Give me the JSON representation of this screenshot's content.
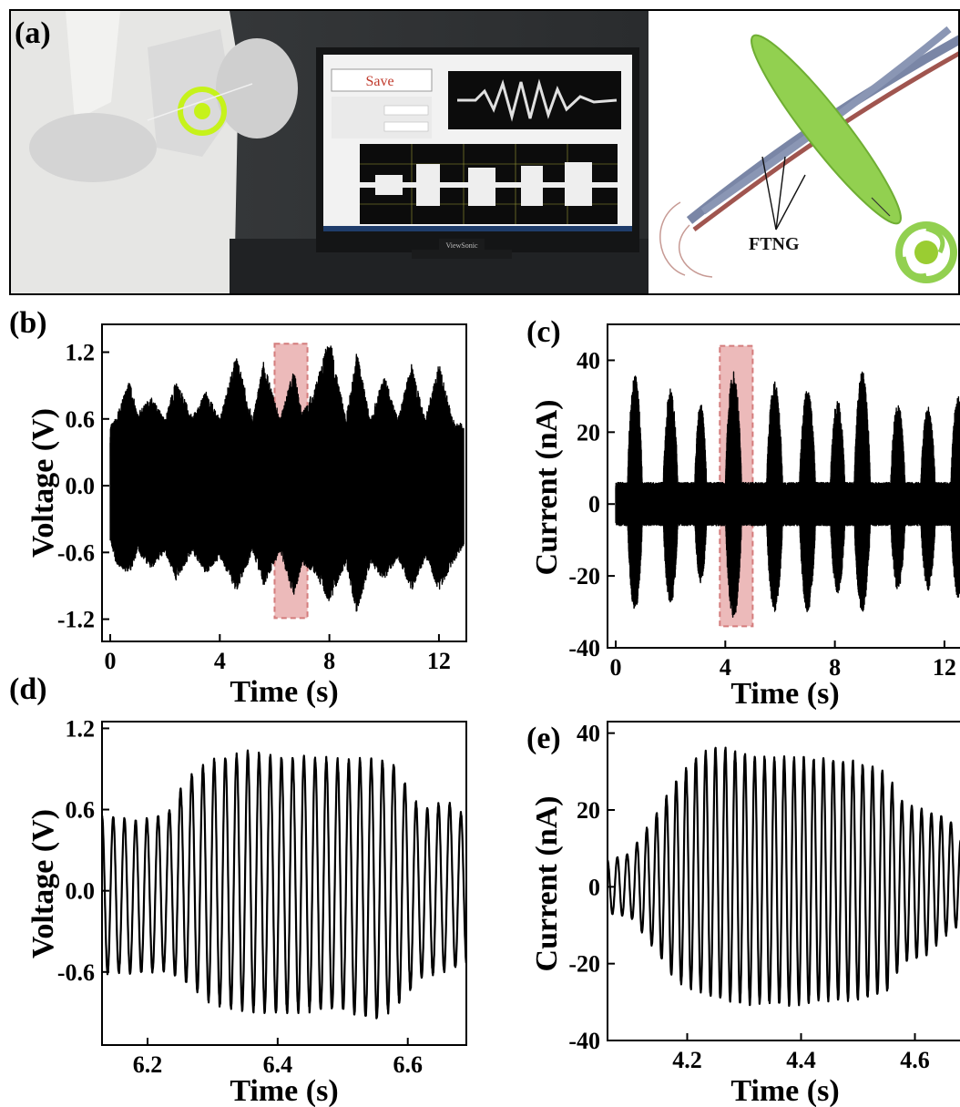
{
  "panels": {
    "a": {
      "letter": "(a)",
      "save_label": "Save",
      "ftng_label": "FTNG",
      "monitor_brand": "ViewSonic",
      "colors": {
        "lab_coat": "#e8e8e8",
        "toy_green": "#b8f000",
        "disc_green": "#8fd14f",
        "fiber_red": "#a0554f",
        "fiber_gray": "#7a86a6"
      }
    },
    "b": {
      "letter": "(b)"
    },
    "c": {
      "letter": "(c)"
    },
    "d": {
      "letter": "(d)"
    },
    "e": {
      "letter": "(e)"
    }
  },
  "chart_data": [
    {
      "id": "b",
      "type": "line",
      "xlabel": "Time (s)",
      "ylabel": "Voltage (V)",
      "xlim": [
        -0.3,
        13.0
      ],
      "ylim": [
        -1.4,
        1.45
      ],
      "xticks": [
        0,
        4,
        8,
        12
      ],
      "yticks": [
        -1.2,
        -0.6,
        0.0,
        0.6,
        1.2
      ],
      "ytick_labels": [
        "-1.2",
        "-0.6",
        "0.0",
        "0.6",
        "1.2"
      ],
      "highlight_x": [
        6.0,
        7.2
      ],
      "series": [
        {
          "x": [
            0,
            0.2,
            0.7,
            1.0,
            1.5,
            2.0,
            2.4,
            3.0,
            3.5,
            4.0,
            4.6,
            5.2,
            5.6,
            6.2,
            6.7,
            7.0,
            7.5,
            8.0,
            8.6,
            9.0,
            9.5,
            10.0,
            10.5,
            11.0,
            11.5,
            12.0,
            12.5,
            12.9
          ],
          "upper": [
            0.55,
            0.6,
            0.95,
            0.65,
            0.8,
            0.6,
            0.95,
            0.62,
            0.85,
            0.6,
            1.18,
            0.6,
            1.12,
            0.6,
            1.05,
            0.65,
            0.9,
            1.35,
            0.6,
            1.2,
            0.6,
            1.0,
            0.6,
            1.1,
            0.6,
            1.1,
            0.6,
            0.55
          ],
          "lower": [
            -0.5,
            -0.7,
            -0.8,
            -0.6,
            -0.75,
            -0.6,
            -0.85,
            -0.6,
            -0.8,
            -0.65,
            -0.95,
            -0.6,
            -0.9,
            -0.6,
            -1.0,
            -0.7,
            -0.8,
            -1.05,
            -0.7,
            -1.15,
            -0.7,
            -0.85,
            -0.65,
            -0.95,
            -0.65,
            -0.95,
            -0.7,
            -0.55
          ]
        }
      ]
    },
    {
      "id": "c",
      "type": "line",
      "xlabel": "Time (s)",
      "ylabel": "Current (nA)",
      "xlim": [
        -0.3,
        13.0
      ],
      "ylim": [
        -40,
        50
      ],
      "xticks": [
        0,
        4,
        8,
        12
      ],
      "yticks": [
        -40,
        -20,
        0,
        20,
        40
      ],
      "ytick_labels": [
        "-40",
        "-20",
        "0",
        "20",
        "40"
      ],
      "highlight_x": [
        3.8,
        5.0
      ],
      "series": [
        {
          "bursts": [
            {
              "center": 0.7,
              "width": 0.55,
              "peak": 36,
              "trough": -30
            },
            {
              "center": 2.0,
              "width": 0.55,
              "peak": 32,
              "trough": -28
            },
            {
              "center": 3.1,
              "width": 0.45,
              "peak": 28,
              "trough": -22
            },
            {
              "center": 4.3,
              "width": 0.6,
              "peak": 37,
              "trough": -32
            },
            {
              "center": 5.8,
              "width": 0.6,
              "peak": 34,
              "trough": -30
            },
            {
              "center": 7.0,
              "width": 0.6,
              "peak": 32,
              "trough": -30
            },
            {
              "center": 8.1,
              "width": 0.55,
              "peak": 29,
              "trough": -25
            },
            {
              "center": 9.0,
              "width": 0.6,
              "peak": 37,
              "trough": -30
            },
            {
              "center": 10.3,
              "width": 0.55,
              "peak": 28,
              "trough": -24
            },
            {
              "center": 11.4,
              "width": 0.55,
              "peak": 27,
              "trough": -24
            },
            {
              "center": 12.5,
              "width": 0.55,
              "peak": 30,
              "trough": -26
            }
          ],
          "baseline_amplitude": 6
        }
      ]
    },
    {
      "id": "d",
      "type": "line",
      "xlabel": "Time (s)",
      "ylabel": "Voltage (V)",
      "xlim": [
        6.13,
        6.69
      ],
      "ylim": [
        -1.14,
        1.25
      ],
      "xticks": [
        6.2,
        6.4,
        6.6
      ],
      "yticks": [
        -0.6,
        0.0,
        0.6,
        1.2
      ],
      "xtick_labels": [
        "6.2",
        "6.4",
        "6.6"
      ],
      "ytick_labels": [
        "-0.6",
        "0.0",
        "0.6",
        "1.2"
      ],
      "series": [
        {
          "frequency_hz": 58,
          "x": [
            6.13,
            6.18,
            6.23,
            6.26,
            6.3,
            6.35,
            6.4,
            6.45,
            6.5,
            6.55,
            6.58,
            6.62,
            6.66,
            6.69
          ],
          "upper": [
            0.57,
            0.53,
            0.58,
            0.85,
            0.98,
            1.05,
            1.0,
            1.0,
            0.98,
            0.99,
            0.95,
            0.6,
            0.68,
            0.55
          ],
          "lower": [
            -0.62,
            -0.62,
            -0.6,
            -0.7,
            -0.85,
            -0.9,
            -0.92,
            -0.9,
            -0.9,
            -0.98,
            -0.88,
            -0.65,
            -0.6,
            -0.55
          ]
        }
      ]
    },
    {
      "id": "e",
      "type": "line",
      "xlabel": "Time (s)",
      "ylabel": "Current (nA)",
      "xlim": [
        4.06,
        4.7
      ],
      "ylim": [
        -40,
        43
      ],
      "xticks": [
        4.2,
        4.4,
        4.6
      ],
      "yticks": [
        -40,
        -20,
        0,
        20,
        40
      ],
      "xtick_labels": [
        "4.2",
        "4.4",
        "4.6"
      ],
      "ytick_labels": [
        "-40",
        "-20",
        "0",
        "20",
        "40"
      ],
      "series": [
        {
          "frequency_hz": 58,
          "x": [
            4.06,
            4.1,
            4.14,
            4.18,
            4.22,
            4.26,
            4.3,
            4.35,
            4.4,
            4.45,
            4.5,
            4.55,
            4.58,
            4.62,
            4.66,
            4.7
          ],
          "upper": [
            7,
            9,
            18,
            28,
            35,
            37,
            35,
            34,
            34,
            34,
            33,
            30,
            22,
            20,
            18,
            7
          ],
          "lower": [
            -7,
            -8,
            -16,
            -25,
            -28,
            -30,
            -31,
            -31,
            -31,
            -30,
            -30,
            -28,
            -20,
            -18,
            -12,
            -8
          ]
        }
      ]
    }
  ]
}
